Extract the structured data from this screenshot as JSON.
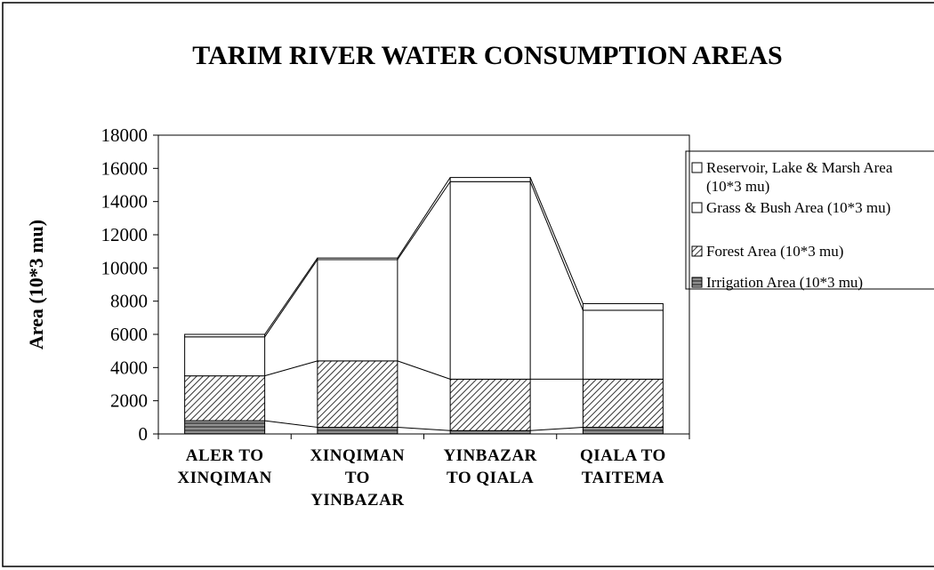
{
  "chart_data": {
    "type": "stacked_bar",
    "title": "TARIM RIVER WATER CONSUMPTION AREAS",
    "y_label": "Area (10*3 mu)",
    "categories": [
      "ALER TO XINQIMAN",
      "XINQIMAN TO YINBAZAR",
      "YINBAZAR TO QIALA",
      "QIALA TO TAITEMA"
    ],
    "series": [
      {
        "name": "Irrigation Area (10*3 mu)",
        "color": "#333333",
        "pattern": "crosshatch",
        "values": [
          800,
          400,
          200,
          400
        ]
      },
      {
        "name": "Forest Area (10*3 mu)",
        "color": "#333333",
        "pattern": "diagonal",
        "values": [
          2700,
          4000,
          3100,
          2900
        ]
      },
      {
        "name": "Grass & Bush Area (10*3 mu)",
        "color": "#ffffff",
        "pattern": "none",
        "values": [
          2350,
          6100,
          11900,
          4150
        ]
      },
      {
        "name": "Reservoir, Lake & Marsh Area (10*3 mu)",
        "color": "#ffffff",
        "pattern": "none",
        "values": [
          150,
          100,
          250,
          400
        ]
      }
    ],
    "ylim": [
      0,
      18000
    ],
    "yticks": [
      0,
      2000,
      4000,
      6000,
      8000,
      10000,
      12000,
      14000,
      16000,
      18000
    ],
    "grid": false,
    "series_lines": true,
    "legend": "right"
  }
}
